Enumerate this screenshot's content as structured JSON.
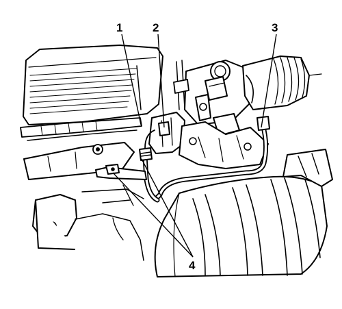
{
  "callouts": [
    {
      "label": "1"
    },
    {
      "label": "2"
    },
    {
      "label": "3"
    },
    {
      "label": "4"
    }
  ]
}
